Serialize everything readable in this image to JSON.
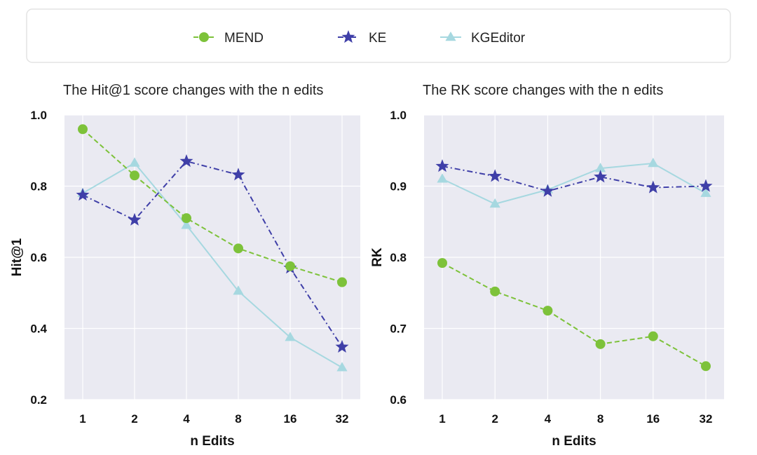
{
  "legend": {
    "items": [
      {
        "label": "MEND",
        "marker": "circle",
        "line": "dashed",
        "color": "#7dc23a"
      },
      {
        "label": "KE",
        "marker": "star",
        "line": "dashdot",
        "color": "#3f3fa8"
      },
      {
        "label": "KGEditor",
        "marker": "triangle",
        "line": "solid",
        "color": "#a6d8e0"
      }
    ]
  },
  "chart_data": [
    {
      "type": "line",
      "title_pre": "The Hit@1 score changes with the",
      "title_code": "n",
      "title_post": "edits",
      "xlabel": "n Edits",
      "ylabel": "Hit@1",
      "categories": [
        "1",
        "2",
        "4",
        "8",
        "16",
        "32"
      ],
      "ylim": [
        0.2,
        1.0
      ],
      "yticks": [
        "0.2",
        "0.4",
        "0.6",
        "0.8",
        "1.0"
      ],
      "grid": true,
      "series": [
        {
          "name": "KGEditor",
          "values": [
            0.78,
            0.865,
            0.69,
            0.505,
            0.375,
            0.29
          ]
        },
        {
          "name": "KE",
          "values": [
            0.775,
            0.705,
            0.87,
            0.832,
            0.57,
            0.348
          ]
        },
        {
          "name": "MEND",
          "values": [
            0.96,
            0.83,
            0.71,
            0.625,
            0.575,
            0.53
          ]
        }
      ]
    },
    {
      "type": "line",
      "title_pre": "The RK score changes with the",
      "title_code": "n",
      "title_post": "edits",
      "xlabel": "n Edits",
      "ylabel": "RK",
      "categories": [
        "1",
        "2",
        "4",
        "8",
        "16",
        "32"
      ],
      "ylim": [
        0.6,
        1.0
      ],
      "yticks": [
        "0.6",
        "0.7",
        "0.8",
        "0.9",
        "1.0"
      ],
      "grid": true,
      "series": [
        {
          "name": "KGEditor",
          "values": [
            0.91,
            0.875,
            0.895,
            0.925,
            0.932,
            0.89
          ]
        },
        {
          "name": "KE",
          "values": [
            0.928,
            0.914,
            0.893,
            0.913,
            0.898,
            0.9
          ]
        },
        {
          "name": "MEND",
          "values": [
            0.792,
            0.752,
            0.725,
            0.678,
            0.689,
            0.647
          ]
        }
      ]
    }
  ]
}
